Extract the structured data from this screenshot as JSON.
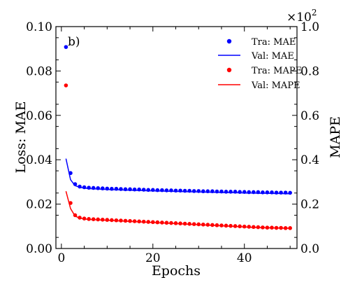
{
  "chart_data": {
    "type": "line",
    "panel_label": "b)",
    "xlabel": "Epochs",
    "ylabel_left": "Loss: MAE",
    "ylabel_right": "MAPE",
    "right_axis_multiplier": "×10",
    "right_axis_multiplier_exp": "2",
    "xlim": [
      -1.2,
      51.5
    ],
    "ylim_left": [
      0.0,
      0.1
    ],
    "ylim_right": [
      0.0,
      1.0
    ],
    "x_ticks": [
      0,
      20,
      40
    ],
    "x_tick_labels": [
      "0",
      "20",
      "40"
    ],
    "y_ticks_left": [
      0.0,
      0.02,
      0.04,
      0.06,
      0.08,
      0.1
    ],
    "y_tick_labels_left": [
      "0.00",
      "0.02",
      "0.04",
      "0.06",
      "0.08",
      "0.10"
    ],
    "y_ticks_right": [
      0.0,
      0.2,
      0.4,
      0.6,
      0.8,
      1.0
    ],
    "y_tick_labels_right": [
      "0.0",
      "0.2",
      "0.4",
      "0.6",
      "0.8",
      "1.0"
    ],
    "legend_position": "top-right",
    "grid": false,
    "x": [
      1,
      2,
      3,
      4,
      5,
      6,
      7,
      8,
      9,
      10,
      11,
      12,
      13,
      14,
      15,
      16,
      17,
      18,
      19,
      20,
      21,
      22,
      23,
      24,
      25,
      26,
      27,
      28,
      29,
      30,
      31,
      32,
      33,
      34,
      35,
      36,
      37,
      38,
      39,
      40,
      41,
      42,
      43,
      44,
      45,
      46,
      47,
      48,
      49,
      50
    ],
    "series": [
      {
        "name": "Tra: MAE",
        "style": "markers",
        "axis": "left",
        "color": "#0000ff",
        "values": [
          0.0908,
          0.034,
          0.029,
          0.0279,
          0.0276,
          0.0274,
          0.0273,
          0.0272,
          0.0271,
          0.027,
          0.0269,
          0.0269,
          0.0268,
          0.0267,
          0.0267,
          0.0266,
          0.0266,
          0.0265,
          0.0264,
          0.0264,
          0.0263,
          0.0263,
          0.0262,
          0.0262,
          0.0261,
          0.0261,
          0.026,
          0.026,
          0.0259,
          0.0259,
          0.0258,
          0.0258,
          0.0258,
          0.0257,
          0.0257,
          0.0256,
          0.0256,
          0.0256,
          0.0255,
          0.0255,
          0.0254,
          0.0254,
          0.0254,
          0.0253,
          0.0253,
          0.0253,
          0.0252,
          0.0252,
          0.0252,
          0.0251
        ]
      },
      {
        "name": "Val: MAE",
        "style": "line",
        "axis": "left",
        "color": "#0000ff",
        "values": [
          0.0405,
          0.031,
          0.0283,
          0.0276,
          0.0272,
          0.027,
          0.0269,
          0.0268,
          0.0267,
          0.0266,
          0.0265,
          0.0265,
          0.0264,
          0.0263,
          0.0263,
          0.0262,
          0.0262,
          0.0261,
          0.026,
          0.026,
          0.0259,
          0.0259,
          0.0258,
          0.0258,
          0.0257,
          0.0257,
          0.0256,
          0.0256,
          0.0255,
          0.0255,
          0.0254,
          0.0254,
          0.0253,
          0.0253,
          0.0252,
          0.0252,
          0.0252,
          0.0251,
          0.0251,
          0.025,
          0.025,
          0.025,
          0.0249,
          0.0249,
          0.0249,
          0.0248,
          0.0248,
          0.0248,
          0.0247,
          0.0247
        ]
      },
      {
        "name": "Tra: MAPE",
        "style": "markers",
        "axis": "left",
        "color": "#ff0000",
        "values": [
          0.0735,
          0.0205,
          0.015,
          0.0139,
          0.0135,
          0.0133,
          0.0132,
          0.0131,
          0.013,
          0.0129,
          0.0128,
          0.0127,
          0.0126,
          0.0125,
          0.0124,
          0.0123,
          0.0122,
          0.0121,
          0.012,
          0.0119,
          0.0118,
          0.0117,
          0.0116,
          0.0115,
          0.0114,
          0.0113,
          0.0112,
          0.0111,
          0.011,
          0.0109,
          0.0108,
          0.0107,
          0.0106,
          0.0105,
          0.0104,
          0.0103,
          0.0102,
          0.0101,
          0.01,
          0.0099,
          0.0098,
          0.0097,
          0.0096,
          0.0095,
          0.0094,
          0.0094,
          0.0093,
          0.0093,
          0.0092,
          0.0092
        ]
      },
      {
        "name": "Val: MAPE",
        "style": "line",
        "axis": "left",
        "color": "#ff0000",
        "values": [
          0.0258,
          0.018,
          0.0146,
          0.0137,
          0.0133,
          0.0131,
          0.013,
          0.0129,
          0.0128,
          0.0127,
          0.0126,
          0.0125,
          0.0124,
          0.0123,
          0.0122,
          0.0121,
          0.012,
          0.0119,
          0.0118,
          0.0117,
          0.0116,
          0.0115,
          0.0114,
          0.0113,
          0.0112,
          0.0111,
          0.011,
          0.0109,
          0.0108,
          0.0107,
          0.0106,
          0.0105,
          0.0104,
          0.0103,
          0.0102,
          0.0101,
          0.01,
          0.0099,
          0.0098,
          0.0097,
          0.0096,
          0.0095,
          0.0094,
          0.0094,
          0.0093,
          0.0093,
          0.0092,
          0.0092,
          0.0091,
          0.0091
        ]
      }
    ]
  }
}
